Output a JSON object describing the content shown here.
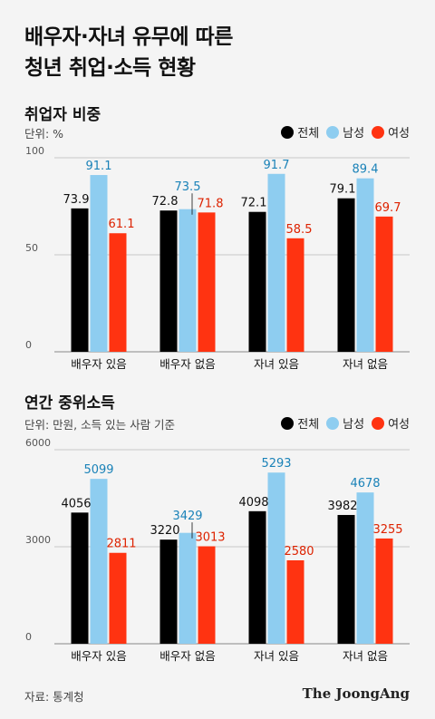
{
  "title_line1": "배우자·자녀 유무에 따른",
  "title_line2": "청년 취업·소득 현황",
  "legend": [
    {
      "label": "전체",
      "color": "#000000"
    },
    {
      "label": "남성",
      "color": "#8ecdf0"
    },
    {
      "label": "여성",
      "color": "#ff3311"
    }
  ],
  "source": "자료: 통계청",
  "brand": "The JoongAng",
  "chart_data": [
    {
      "type": "bar",
      "title": "취업자 비중",
      "unit": "단위: %",
      "categories": [
        "배우자 있음",
        "배우자 없음",
        "자녀 있음",
        "자녀 없음"
      ],
      "series": [
        {
          "name": "전체",
          "values": [
            73.9,
            72.8,
            72.1,
            79.1
          ]
        },
        {
          "name": "남성",
          "values": [
            91.1,
            73.5,
            91.7,
            89.4
          ]
        },
        {
          "name": "여성",
          "values": [
            61.1,
            71.8,
            58.5,
            69.7
          ]
        }
      ],
      "value_labels": [
        [
          "73.9",
          "72.8",
          "72.1",
          "79.1"
        ],
        [
          "91.1",
          "73.5",
          "91.7",
          "89.4"
        ],
        [
          "61.1",
          "71.8",
          "58.5",
          "69.7"
        ]
      ],
      "ylim": [
        0,
        100
      ],
      "yticks": [
        0,
        50,
        100
      ],
      "grid": true
    },
    {
      "type": "bar",
      "title": "연간 중위소득",
      "unit": "단위: 만원, 소득 있는 사람 기준",
      "categories": [
        "배우자 있음",
        "배우자 없음",
        "자녀 있음",
        "자녀 없음"
      ],
      "series": [
        {
          "name": "전체",
          "values": [
            4056,
            3220,
            4098,
            3982
          ]
        },
        {
          "name": "남성",
          "values": [
            5099,
            3429,
            5293,
            4678
          ]
        },
        {
          "name": "여성",
          "values": [
            2811,
            3013,
            2580,
            3255
          ]
        }
      ],
      "value_labels": [
        [
          "4056",
          "3220",
          "4098",
          "3982"
        ],
        [
          "5099",
          "3429",
          "5293",
          "4678"
        ],
        [
          "2811",
          "3013",
          "2580",
          "3255"
        ]
      ],
      "ylim": [
        0,
        6000
      ],
      "yticks": [
        0,
        3000,
        6000
      ],
      "grid": true
    }
  ]
}
